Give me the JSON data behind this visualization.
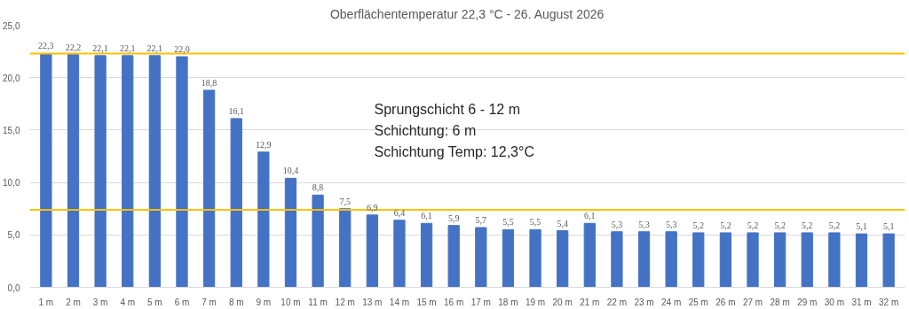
{
  "chart_data": {
    "type": "bar",
    "title": "Oberflächentemperatur 22,3 °C - 26. August 2026",
    "categories": [
      "1 m",
      "2 m",
      "3 m",
      "4 m",
      "5 m",
      "6 m",
      "7 m",
      "8 m",
      "9 m",
      "10 m",
      "11 m",
      "12 m",
      "13 m",
      "14 m",
      "15 m",
      "16 m",
      "17 m",
      "18 m",
      "19 m",
      "20 m",
      "21 m",
      "22 m",
      "23 m",
      "24 m",
      "25 m",
      "26 m",
      "27 m",
      "28 m",
      "29 m",
      "30 m",
      "31 m",
      "32 m"
    ],
    "values": [
      22.3,
      22.2,
      22.1,
      22.1,
      22.1,
      22.0,
      18.8,
      16.1,
      12.9,
      10.4,
      8.8,
      7.5,
      6.9,
      6.4,
      6.1,
      5.9,
      5.7,
      5.5,
      5.5,
      5.4,
      6.1,
      5.3,
      5.3,
      5.3,
      5.2,
      5.2,
      5.2,
      5.2,
      5.2,
      5.2,
      5.1,
      5.1
    ],
    "value_labels": [
      "22,3",
      "22,2",
      "22,1",
      "22,1",
      "22,1",
      "22,0",
      "18,8",
      "16,1",
      "12,9",
      "10,4",
      "8,8",
      "7,5",
      "6,9",
      "6,4",
      "6,1",
      "5,9",
      "5,7",
      "5,5",
      "5,5",
      "5,4",
      "6,1",
      "5,3",
      "5,3",
      "5,3",
      "5,2",
      "5,2",
      "5,2",
      "5,2",
      "5,2",
      "5,2",
      "5,1",
      "5,1"
    ],
    "color": "#4472c4",
    "ylim": [
      0,
      25
    ],
    "yticks": [
      {
        "value": 0,
        "label": "0,0"
      },
      {
        "value": 5,
        "label": "5,0"
      },
      {
        "value": 10,
        "label": "10,0"
      },
      {
        "value": 15,
        "label": "15,0"
      },
      {
        "value": 20,
        "label": "20,0"
      },
      {
        "value": 25,
        "label": "25,0"
      }
    ],
    "grid": "y",
    "ref_lines": [
      {
        "axis": "y",
        "value": 22.3,
        "color": "#ffc000"
      },
      {
        "axis": "y",
        "value": 7.4,
        "color": "#ffc000"
      }
    ],
    "annotations": [
      "Sprungschicht 6 - 12 m",
      "Schichtung: 6 m",
      "Schichtung Temp: 12,3°C"
    ]
  }
}
